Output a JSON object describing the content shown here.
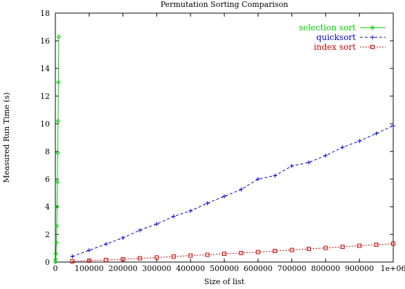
{
  "chart_data": {
    "type": "line",
    "title": "Permutation Sorting Comparison",
    "xlabel": "Size of list",
    "ylabel": "Measured Run Time (s)",
    "xlim": [
      0,
      1000000
    ],
    "ylim": [
      0,
      18
    ],
    "grid": false,
    "legend_position": "top-right",
    "x_ticks": [
      0,
      100000,
      200000,
      300000,
      400000,
      500000,
      600000,
      700000,
      800000,
      900000,
      1000000
    ],
    "x_tick_labels": [
      "0",
      "100000",
      "200000",
      "300000",
      "400000",
      "500000",
      "600000",
      "700000",
      "800000",
      "900000",
      "1e+06"
    ],
    "y_ticks": [
      0,
      2,
      4,
      6,
      8,
      10,
      12,
      14,
      16,
      18
    ],
    "y_tick_labels": [
      "0",
      "2",
      "4",
      "6",
      "8",
      "10",
      "12",
      "14",
      "16",
      "18"
    ],
    "series": [
      {
        "name": "selection sort",
        "color": "#00cc00",
        "marker": "diamond",
        "dash": "solid",
        "x": [
          0,
          1000,
          2000,
          3000,
          4000,
          5000,
          6000,
          7000,
          8000,
          9000,
          10000
        ],
        "y": [
          0.0,
          0.2,
          0.6,
          1.4,
          2.6,
          4.0,
          5.8,
          7.9,
          10.2,
          13.0,
          16.3
        ]
      },
      {
        "name": "quicksort",
        "color": "#0000cc",
        "marker": "plus",
        "dash": "dashed",
        "x": [
          50000,
          100000,
          150000,
          200000,
          250000,
          300000,
          350000,
          400000,
          450000,
          500000,
          550000,
          600000,
          650000,
          700000,
          750000,
          800000,
          850000,
          900000,
          950000,
          1000000
        ],
        "y": [
          0.4,
          0.85,
          1.3,
          1.75,
          2.3,
          2.75,
          3.3,
          3.7,
          4.25,
          4.75,
          5.25,
          6.0,
          6.25,
          6.95,
          7.2,
          7.7,
          8.3,
          8.75,
          9.3,
          9.85
        ]
      },
      {
        "name": "index sort",
        "color": "#cc0000",
        "marker": "square",
        "dash": "dotted",
        "x": [
          50000,
          100000,
          150000,
          200000,
          250000,
          300000,
          350000,
          400000,
          450000,
          500000,
          550000,
          600000,
          650000,
          700000,
          750000,
          800000,
          850000,
          900000,
          950000,
          1000000
        ],
        "y": [
          0.05,
          0.1,
          0.15,
          0.2,
          0.27,
          0.33,
          0.4,
          0.47,
          0.52,
          0.6,
          0.65,
          0.72,
          0.8,
          0.87,
          0.95,
          1.02,
          1.1,
          1.18,
          1.25,
          1.33
        ]
      }
    ]
  }
}
